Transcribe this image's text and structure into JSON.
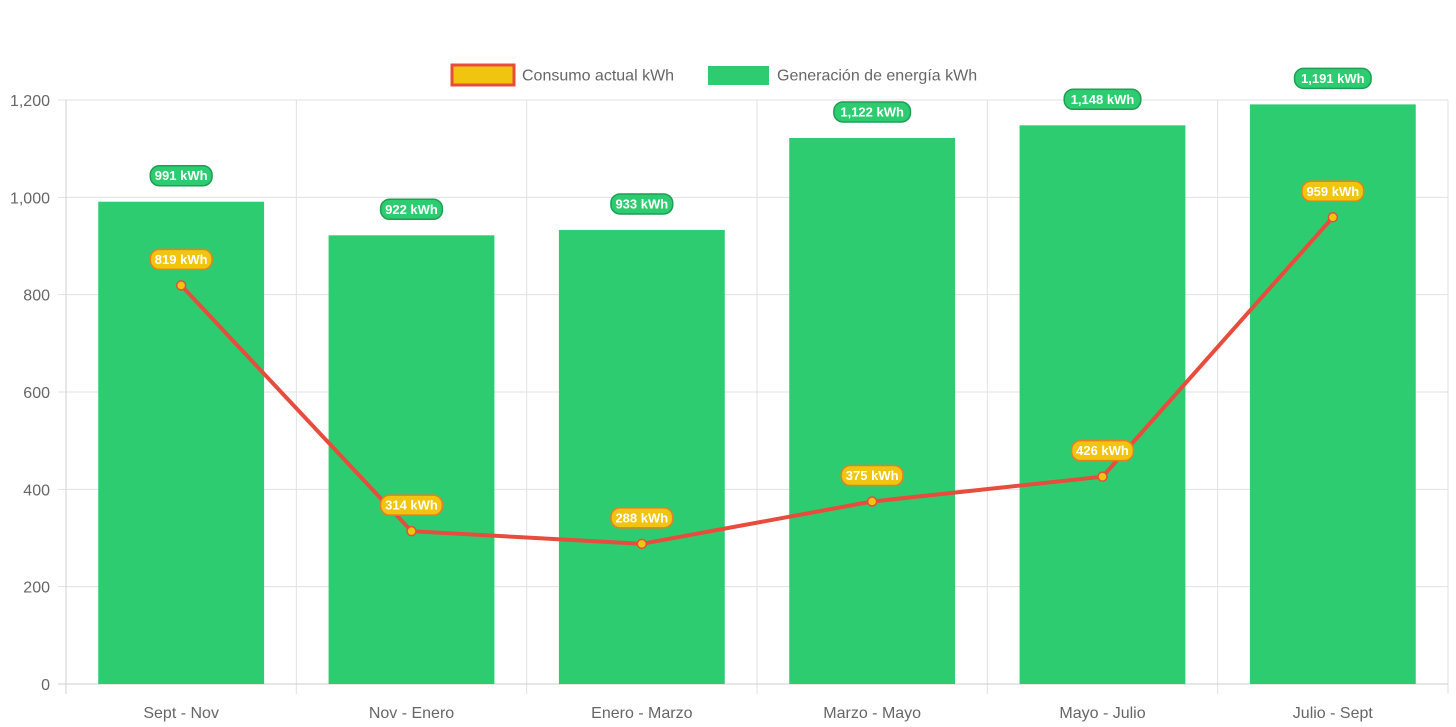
{
  "chart_data": {
    "type": "bar",
    "categories": [
      "Sept - Nov",
      "Nov - Enero",
      "Enero - Marzo",
      "Marzo - Mayo",
      "Mayo - Julio",
      "Julio - Sept"
    ],
    "series": [
      {
        "name": "Consumo actual kWh",
        "type": "line",
        "values": [
          819,
          314,
          288,
          375,
          426,
          959
        ],
        "color": "#e74c3c",
        "point_color": "#f1c40f",
        "data_labels": [
          "819 kWh",
          "314 kWh",
          "288 kWh",
          "375 kWh",
          "426 kWh",
          "959 kWh"
        ]
      },
      {
        "name": "Generación de energía kWh",
        "type": "bar",
        "values": [
          991,
          922,
          933,
          1122,
          1148,
          1191
        ],
        "color": "#2ecc71",
        "data_labels": [
          "991 kWh",
          "922 kWh",
          "933 kWh",
          "1,122 kWh",
          "1,148 kWh",
          "1,191 kWh"
        ]
      }
    ],
    "ylim": [
      0,
      1200
    ],
    "yticks": [
      "0",
      "200",
      "400",
      "600",
      "800",
      "1,000",
      "1,200"
    ],
    "ytick_values": [
      0,
      200,
      400,
      600,
      800,
      1000,
      1200
    ],
    "grid": true,
    "legend": "top-center",
    "title": "",
    "xlabel": "",
    "ylabel": ""
  }
}
